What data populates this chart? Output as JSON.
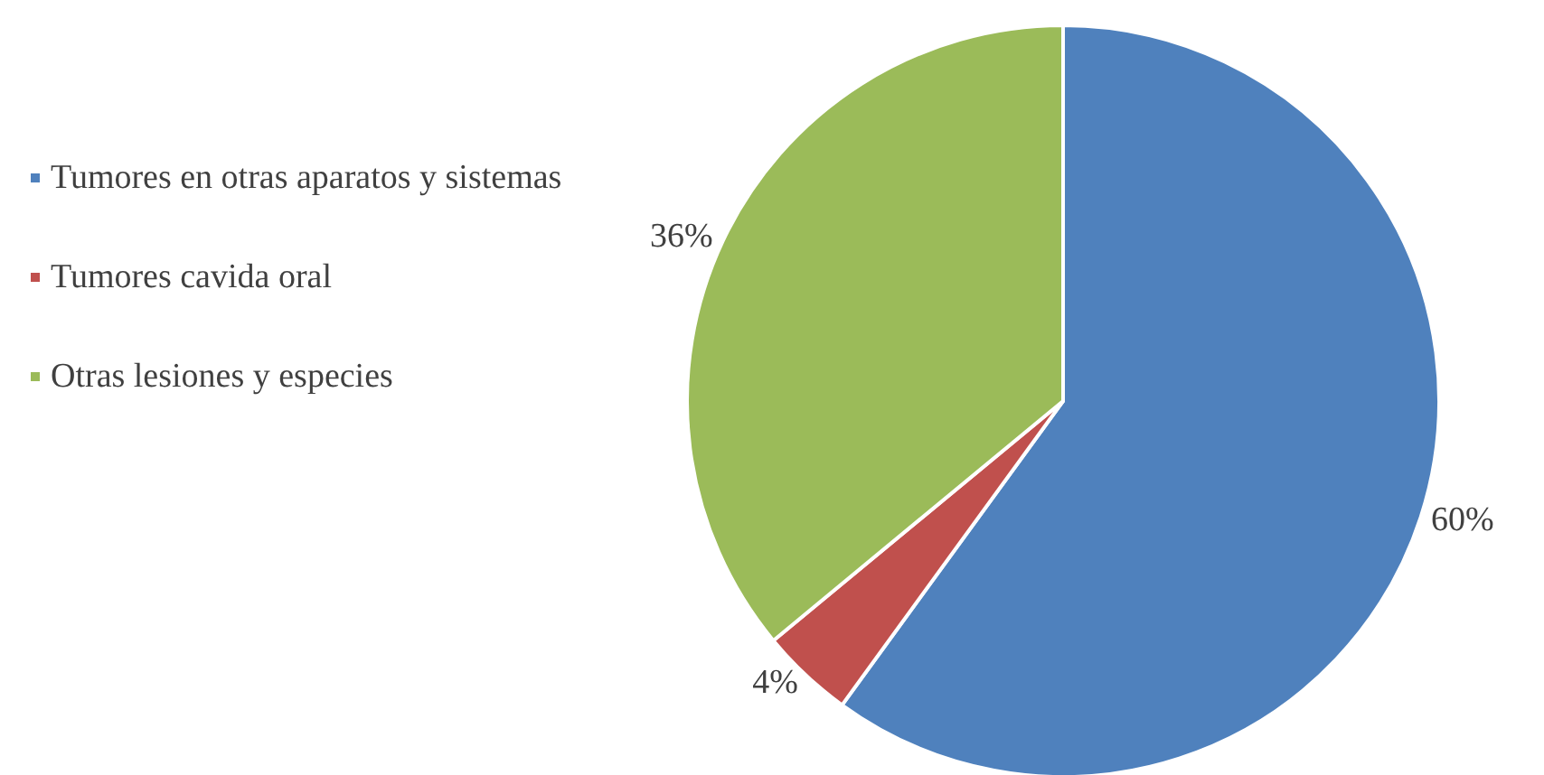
{
  "chart_data": {
    "type": "pie",
    "categories": [
      "Tumores en otras aparatos y sistemas",
      "Tumores cavida oral",
      "Otras lesiones y especies"
    ],
    "values": [
      60,
      4,
      36
    ],
    "colors": [
      "#4f81bd",
      "#c0504d",
      "#9bbb59"
    ],
    "value_labels": [
      "60%",
      "4%",
      "36%"
    ],
    "legend": "left"
  }
}
